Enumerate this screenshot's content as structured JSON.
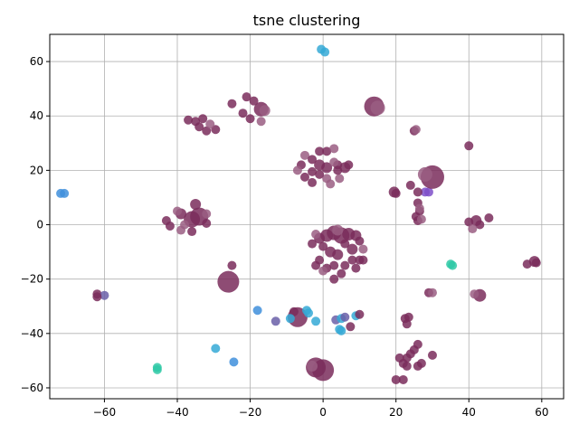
{
  "chart_data": {
    "type": "scatter",
    "title": "tsne clustering",
    "xlabel": "",
    "ylabel": "",
    "xlim": [
      -75,
      66
    ],
    "ylim": [
      -64,
      70
    ],
    "xticks": [
      -60,
      -40,
      -20,
      0,
      20,
      40,
      60
    ],
    "yticks": [
      -60,
      -40,
      -20,
      0,
      20,
      40,
      60
    ],
    "xtick_labels": [
      "−60",
      "−40",
      "−20",
      "0",
      "20",
      "40",
      "60"
    ],
    "ytick_labels": [
      "−60",
      "−40",
      "−20",
      "0",
      "20",
      "40",
      "60"
    ],
    "grid": true,
    "legend": "none",
    "colors": {
      "maroon": "#7a2d5c",
      "maroon_light": "#9a5e82",
      "blue": "#3f8fdc",
      "sky": "#35a9d6",
      "teal": "#2fc9a6",
      "purple": "#7e4fc9",
      "violet": "#6a5fa8"
    },
    "points": [
      {
        "x": -0.5,
        "y": 64.5,
        "s": 5,
        "c": "sky"
      },
      {
        "x": 0.5,
        "y": 63.5,
        "s": 5,
        "c": "sky"
      },
      {
        "x": -72,
        "y": 11.5,
        "s": 5,
        "c": "blue"
      },
      {
        "x": -71,
        "y": 11.5,
        "s": 5,
        "c": "blue"
      },
      {
        "x": -62,
        "y": -25.5,
        "s": 5,
        "c": "maroon"
      },
      {
        "x": -60,
        "y": -26,
        "s": 5,
        "c": "violet"
      },
      {
        "x": -62,
        "y": -26.5,
        "s": 5,
        "c": "maroon"
      },
      {
        "x": -45.5,
        "y": -52.5,
        "s": 5,
        "c": "teal"
      },
      {
        "x": -45.5,
        "y": -53.3,
        "s": 5,
        "c": "teal"
      },
      {
        "x": -29.5,
        "y": -45.5,
        "s": 5,
        "c": "sky"
      },
      {
        "x": -24.5,
        "y": -50.5,
        "s": 5,
        "c": "blue"
      },
      {
        "x": -18,
        "y": -31.5,
        "s": 5,
        "c": "blue"
      },
      {
        "x": -13,
        "y": -35.5,
        "s": 5,
        "c": "violet"
      },
      {
        "x": -8,
        "y": -32,
        "s": 5,
        "c": "maroon"
      },
      {
        "x": -7,
        "y": -34,
        "s": 11,
        "c": "maroon"
      },
      {
        "x": -9,
        "y": -34.5,
        "s": 5,
        "c": "sky"
      },
      {
        "x": -4.5,
        "y": -31.5,
        "s": 5,
        "c": "sky"
      },
      {
        "x": -4,
        "y": -32.5,
        "s": 5,
        "c": "sky"
      },
      {
        "x": -2,
        "y": -35.5,
        "s": 5,
        "c": "sky"
      },
      {
        "x": 3.5,
        "y": -35,
        "s": 5,
        "c": "violet"
      },
      {
        "x": 5,
        "y": -34.5,
        "s": 5,
        "c": "sky"
      },
      {
        "x": 6,
        "y": -34,
        "s": 5,
        "c": "violet"
      },
      {
        "x": 4.5,
        "y": -38.5,
        "s": 5,
        "c": "sky"
      },
      {
        "x": 5,
        "y": -39,
        "s": 5,
        "c": "sky"
      },
      {
        "x": 7.5,
        "y": -37.5,
        "s": 5,
        "c": "maroon"
      },
      {
        "x": 9,
        "y": -33.5,
        "s": 5,
        "c": "sky"
      },
      {
        "x": 10,
        "y": -33,
        "s": 5,
        "c": "maroon"
      },
      {
        "x": 35,
        "y": -14.5,
        "s": 5,
        "c": "teal"
      },
      {
        "x": 35.5,
        "y": -15,
        "s": 5,
        "c": "teal"
      },
      {
        "x": 29,
        "y": 12,
        "s": 5,
        "c": "purple"
      },
      {
        "x": 28,
        "y": 12,
        "s": 5,
        "c": "purple"
      },
      {
        "x": -26,
        "y": -21,
        "s": 12,
        "c": "maroon"
      },
      {
        "x": -25,
        "y": -15,
        "s": 5,
        "c": "maroon"
      },
      {
        "x": -2,
        "y": -52.5,
        "s": 11,
        "c": "maroon"
      },
      {
        "x": 0,
        "y": -53.5,
        "s": 12,
        "c": "maroon"
      },
      {
        "x": -3,
        "y": -52,
        "s": 6,
        "c": "maroon_light"
      },
      {
        "x": 14,
        "y": 43.5,
        "s": 11,
        "c": "maroon"
      },
      {
        "x": 15,
        "y": 43,
        "s": 8,
        "c": "maroon_light"
      },
      {
        "x": 30,
        "y": 17.5,
        "s": 13,
        "c": "maroon"
      },
      {
        "x": 28,
        "y": 18.5,
        "s": 8,
        "c": "maroon_light"
      },
      {
        "x": -17,
        "y": 42.5,
        "s": 8,
        "c": "maroon"
      },
      {
        "x": -16,
        "y": 42,
        "s": 6,
        "c": "maroon_light"
      },
      {
        "x": -19,
        "y": 45.5,
        "s": 5,
        "c": "maroon"
      },
      {
        "x": -21,
        "y": 47,
        "s": 5,
        "c": "maroon"
      },
      {
        "x": -25,
        "y": 44.5,
        "s": 5,
        "c": "maroon"
      },
      {
        "x": -22,
        "y": 41,
        "s": 5,
        "c": "maroon"
      },
      {
        "x": -20,
        "y": 39,
        "s": 5,
        "c": "maroon"
      },
      {
        "x": -17,
        "y": 38,
        "s": 5,
        "c": "maroon_light"
      },
      {
        "x": -37,
        "y": 38.5,
        "s": 5,
        "c": "maroon"
      },
      {
        "x": -35,
        "y": 38,
        "s": 5,
        "c": "maroon"
      },
      {
        "x": -33,
        "y": 39,
        "s": 5,
        "c": "maroon"
      },
      {
        "x": -34,
        "y": 36,
        "s": 5,
        "c": "maroon"
      },
      {
        "x": -32,
        "y": 34.5,
        "s": 5,
        "c": "maroon"
      },
      {
        "x": -29.5,
        "y": 35,
        "s": 5,
        "c": "maroon"
      },
      {
        "x": -31,
        "y": 37,
        "s": 5,
        "c": "maroon_light"
      },
      {
        "x": 25,
        "y": 34.5,
        "s": 5,
        "c": "maroon"
      },
      {
        "x": 25.5,
        "y": 35,
        "s": 5,
        "c": "maroon_light"
      },
      {
        "x": 40,
        "y": 29,
        "s": 5,
        "c": "maroon"
      },
      {
        "x": 19.5,
        "y": 12,
        "s": 6,
        "c": "maroon"
      },
      {
        "x": 20,
        "y": 11.5,
        "s": 5,
        "c": "maroon"
      },
      {
        "x": 24,
        "y": 14.5,
        "s": 5,
        "c": "maroon"
      },
      {
        "x": 26,
        "y": 12,
        "s": 5,
        "c": "maroon"
      },
      {
        "x": 26,
        "y": 8,
        "s": 5,
        "c": "maroon"
      },
      {
        "x": 26.5,
        "y": 5,
        "s": 5,
        "c": "maroon"
      },
      {
        "x": 25.5,
        "y": 3,
        "s": 5,
        "c": "maroon"
      },
      {
        "x": 26,
        "y": 1.5,
        "s": 5,
        "c": "maroon"
      },
      {
        "x": 27,
        "y": 2,
        "s": 5,
        "c": "maroon_light"
      },
      {
        "x": 26.5,
        "y": 6,
        "s": 5,
        "c": "maroon_light"
      },
      {
        "x": 40,
        "y": 1,
        "s": 5,
        "c": "maroon"
      },
      {
        "x": 42,
        "y": 1.5,
        "s": 6,
        "c": "maroon"
      },
      {
        "x": 43,
        "y": 0,
        "s": 5,
        "c": "maroon"
      },
      {
        "x": 41,
        "y": -1.5,
        "s": 5,
        "c": "maroon_light"
      },
      {
        "x": 45.5,
        "y": 2.5,
        "s": 5,
        "c": "maroon"
      },
      {
        "x": 43,
        "y": -26,
        "s": 7,
        "c": "maroon"
      },
      {
        "x": 41.5,
        "y": -25.5,
        "s": 5,
        "c": "maroon_light"
      },
      {
        "x": 56,
        "y": -14.5,
        "s": 5,
        "c": "maroon"
      },
      {
        "x": 58,
        "y": -13.5,
        "s": 6,
        "c": "maroon"
      },
      {
        "x": 58.5,
        "y": -14,
        "s": 5,
        "c": "maroon"
      },
      {
        "x": 29,
        "y": -25,
        "s": 5,
        "c": "maroon"
      },
      {
        "x": 30,
        "y": -25,
        "s": 5,
        "c": "maroon_light"
      },
      {
        "x": 22.5,
        "y": -34.5,
        "s": 5,
        "c": "maroon"
      },
      {
        "x": 23.5,
        "y": -34,
        "s": 5,
        "c": "maroon"
      },
      {
        "x": 23,
        "y": -36.5,
        "s": 5,
        "c": "maroon"
      },
      {
        "x": 26,
        "y": -44,
        "s": 5,
        "c": "maroon"
      },
      {
        "x": 25,
        "y": -46,
        "s": 5,
        "c": "maroon"
      },
      {
        "x": 24,
        "y": -47.5,
        "s": 5,
        "c": "maroon"
      },
      {
        "x": 23,
        "y": -49,
        "s": 5,
        "c": "maroon"
      },
      {
        "x": 30,
        "y": -48,
        "s": 5,
        "c": "maroon"
      },
      {
        "x": 27,
        "y": -51,
        "s": 5,
        "c": "maroon"
      },
      {
        "x": 26,
        "y": -52,
        "s": 5,
        "c": "maroon"
      },
      {
        "x": 22,
        "y": -51,
        "s": 5,
        "c": "maroon"
      },
      {
        "x": 21,
        "y": -49,
        "s": 5,
        "c": "maroon"
      },
      {
        "x": 22,
        "y": -57,
        "s": 5,
        "c": "maroon"
      },
      {
        "x": 20,
        "y": -57,
        "s": 5,
        "c": "maroon"
      },
      {
        "x": 23,
        "y": -52,
        "s": 5,
        "c": "maroon"
      },
      {
        "x": -39,
        "y": 4,
        "s": 6,
        "c": "maroon"
      },
      {
        "x": -36,
        "y": 2,
        "s": 9,
        "c": "maroon"
      },
      {
        "x": -34,
        "y": 3,
        "s": 10,
        "c": "maroon"
      },
      {
        "x": -35,
        "y": 7.5,
        "s": 6,
        "c": "maroon"
      },
      {
        "x": -40,
        "y": 5,
        "s": 5,
        "c": "maroon_light"
      },
      {
        "x": -43,
        "y": 1.5,
        "s": 5,
        "c": "maroon"
      },
      {
        "x": -42,
        "y": -0.5,
        "s": 5,
        "c": "maroon"
      },
      {
        "x": -39,
        "y": -2,
        "s": 5,
        "c": "maroon_light"
      },
      {
        "x": -36,
        "y": -2.5,
        "s": 5,
        "c": "maroon"
      },
      {
        "x": -32,
        "y": 0.5,
        "s": 5,
        "c": "maroon"
      },
      {
        "x": -32,
        "y": 4,
        "s": 5,
        "c": "maroon_light"
      },
      {
        "x": -38,
        "y": 0,
        "s": 5,
        "c": "maroon_light"
      },
      {
        "x": -1,
        "y": 27,
        "s": 5,
        "c": "maroon"
      },
      {
        "x": 1,
        "y": 27,
        "s": 5,
        "c": "maroon"
      },
      {
        "x": 3,
        "y": 28,
        "s": 5,
        "c": "maroon_light"
      },
      {
        "x": -5,
        "y": 25.5,
        "s": 5,
        "c": "maroon_light"
      },
      {
        "x": -3,
        "y": 24,
        "s": 5,
        "c": "maroon"
      },
      {
        "x": -1,
        "y": 22,
        "s": 6,
        "c": "maroon"
      },
      {
        "x": 1,
        "y": 21,
        "s": 6,
        "c": "maroon"
      },
      {
        "x": 4,
        "y": 22,
        "s": 5,
        "c": "maroon"
      },
      {
        "x": 6,
        "y": 21,
        "s": 6,
        "c": "maroon"
      },
      {
        "x": 7,
        "y": 22,
        "s": 5,
        "c": "maroon"
      },
      {
        "x": -6,
        "y": 22,
        "s": 5,
        "c": "maroon"
      },
      {
        "x": -7,
        "y": 20,
        "s": 5,
        "c": "maroon_light"
      },
      {
        "x": -3,
        "y": 19.5,
        "s": 5,
        "c": "maroon"
      },
      {
        "x": -5,
        "y": 17.5,
        "s": 5,
        "c": "maroon"
      },
      {
        "x": -3,
        "y": 15.5,
        "s": 5,
        "c": "maroon"
      },
      {
        "x": 1,
        "y": 17,
        "s": 5,
        "c": "maroon_light"
      },
      {
        "x": 2,
        "y": 15,
        "s": 5,
        "c": "maroon_light"
      },
      {
        "x": 4.5,
        "y": 17,
        "s": 5,
        "c": "maroon_light"
      },
      {
        "x": 4,
        "y": 20,
        "s": 5,
        "c": "maroon"
      },
      {
        "x": -1,
        "y": 18.5,
        "s": 5,
        "c": "maroon"
      },
      {
        "x": 3,
        "y": 23,
        "s": 5,
        "c": "maroon_light"
      },
      {
        "x": 1,
        "y": -4,
        "s": 7,
        "c": "maroon"
      },
      {
        "x": 3,
        "y": -3,
        "s": 8,
        "c": "maroon"
      },
      {
        "x": 5,
        "y": -4,
        "s": 9,
        "c": "maroon"
      },
      {
        "x": 7,
        "y": -3.5,
        "s": 7,
        "c": "maroon"
      },
      {
        "x": 9,
        "y": -4,
        "s": 6,
        "c": "maroon"
      },
      {
        "x": -1,
        "y": -5,
        "s": 6,
        "c": "maroon"
      },
      {
        "x": -2,
        "y": -3.5,
        "s": 5,
        "c": "maroon_light"
      },
      {
        "x": 4,
        "y": -2,
        "s": 6,
        "c": "maroon_light"
      },
      {
        "x": 0,
        "y": -8,
        "s": 5,
        "c": "maroon"
      },
      {
        "x": -3,
        "y": -7,
        "s": 5,
        "c": "maroon"
      },
      {
        "x": 2,
        "y": -10,
        "s": 6,
        "c": "maroon"
      },
      {
        "x": 4,
        "y": -11,
        "s": 6,
        "c": "maroon"
      },
      {
        "x": 6,
        "y": -7,
        "s": 5,
        "c": "maroon"
      },
      {
        "x": 8,
        "y": -9,
        "s": 6,
        "c": "maroon"
      },
      {
        "x": 10,
        "y": -6,
        "s": 5,
        "c": "maroon"
      },
      {
        "x": 11,
        "y": -9,
        "s": 5,
        "c": "maroon_light"
      },
      {
        "x": 10,
        "y": -13,
        "s": 5,
        "c": "maroon"
      },
      {
        "x": 8,
        "y": -13,
        "s": 5,
        "c": "maroon"
      },
      {
        "x": 6,
        "y": -15,
        "s": 5,
        "c": "maroon"
      },
      {
        "x": 3,
        "y": -15,
        "s": 5,
        "c": "maroon"
      },
      {
        "x": 1,
        "y": -16,
        "s": 5,
        "c": "maroon"
      },
      {
        "x": -1,
        "y": -13,
        "s": 5,
        "c": "maroon"
      },
      {
        "x": 0,
        "y": -17,
        "s": 5,
        "c": "maroon_light"
      },
      {
        "x": 5,
        "y": -18,
        "s": 5,
        "c": "maroon"
      },
      {
        "x": 9,
        "y": -16,
        "s": 5,
        "c": "maroon"
      },
      {
        "x": 11,
        "y": -13,
        "s": 5,
        "c": "maroon"
      },
      {
        "x": -2,
        "y": -15,
        "s": 5,
        "c": "maroon"
      },
      {
        "x": 3,
        "y": -20,
        "s": 5,
        "c": "maroon"
      }
    ]
  }
}
